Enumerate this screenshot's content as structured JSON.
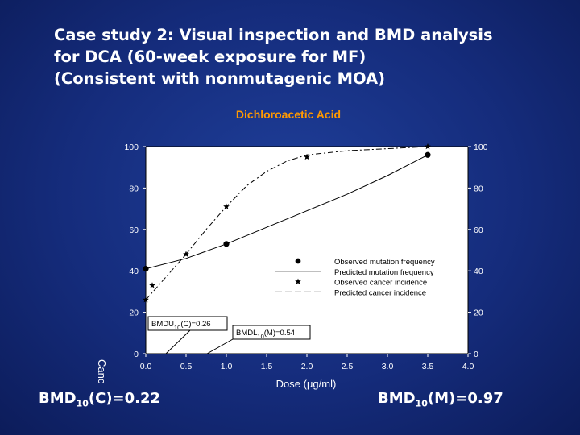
{
  "slide": {
    "title_lines": [
      "Case study 2:  Visual inspection and BMD analysis",
      "for DCA (60-week exposure for MF)",
      "(Consistent with nonmutagenic MOA)"
    ],
    "bmd_c": {
      "prefix": "BMD",
      "sub": "10",
      "suffix": "(C)=0.22"
    },
    "bmd_m": {
      "prefix": "BMD",
      "sub": "10",
      "suffix": "(M)=0.97"
    }
  },
  "colors": {
    "chart_title": "#ff9900",
    "axis_text": "#ffffff",
    "plot_background": "#ffffff",
    "marks": "#000000"
  },
  "chart_data": {
    "type": "line",
    "title": "Dichloroacetic Acid",
    "xlabel": "Dose (μg/ml)",
    "ylabel": "Canc",
    "xlim": [
      0,
      4
    ],
    "ylim": [
      0,
      100
    ],
    "x_ticks": [
      "0.0",
      "0.5",
      "1.0",
      "1.5",
      "2.0",
      "2.5",
      "3.0",
      "3.5",
      "4.0"
    ],
    "y_ticks": [
      "0",
      "20",
      "40",
      "60",
      "80",
      "100"
    ],
    "y_ticks_right": [
      "0",
      "20",
      "40",
      "60",
      "80",
      "100"
    ],
    "grid": false,
    "legend_position": "center-right",
    "series": [
      {
        "name": "Observed mutation frequency",
        "style": "circle-markers",
        "x": [
          0,
          1.0,
          3.5
        ],
        "y": [
          41,
          53,
          96
        ]
      },
      {
        "name": "Predicted mutation frequency",
        "style": "solid-line",
        "x": [
          0,
          0.5,
          1.0,
          1.5,
          2.0,
          2.5,
          3.0,
          3.5
        ],
        "y": [
          41,
          46,
          53,
          61,
          69,
          77,
          86,
          96
        ]
      },
      {
        "name": "Observed cancer incidence",
        "style": "star-markers",
        "x": [
          0,
          0.05,
          0.5,
          1.0,
          2.0,
          3.5
        ],
        "y": [
          26,
          33,
          48,
          71,
          95,
          100
        ]
      },
      {
        "name": "Predicted cancer incidence",
        "style": "dashed-line",
        "x": [
          0,
          0.25,
          0.5,
          0.75,
          1.0,
          1.25,
          1.5,
          1.75,
          2.0,
          2.5,
          3.0,
          3.5
        ],
        "y": [
          26,
          37,
          48,
          60,
          71,
          81,
          88,
          93,
          96,
          98,
          99,
          100
        ]
      }
    ],
    "annotations": [
      {
        "id": "bmdu",
        "prefix": "BMDU",
        "sub": "10",
        "suffix": "(C)=0.26"
      },
      {
        "id": "bmdl",
        "prefix": "BMDL",
        "sub": "10",
        "suffix": "(M)=0.54"
      }
    ]
  }
}
